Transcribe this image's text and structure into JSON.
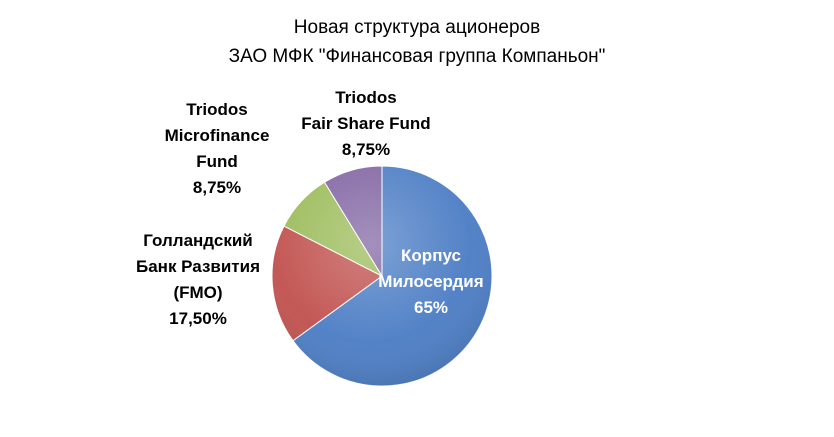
{
  "chart_data": {
    "type": "pie",
    "title": [
      "Новая структура ационеров",
      "ЗАО МФК \"Финансовая группа Компаньон\""
    ],
    "slices": [
      {
        "name": [
          "Корпус",
          "Милосердия"
        ],
        "value": 65,
        "label": "65%",
        "color": "#4A7CC4"
      },
      {
        "name": [
          "Голландский",
          "Банк Развития",
          "(FMO)"
        ],
        "value": 17.5,
        "label": "17,50%",
        "color": "#C0504D"
      },
      {
        "name": [
          "Triodos",
          "Microfinance",
          "Fund"
        ],
        "value": 8.75,
        "label": "8,75%",
        "color": "#9BBB59"
      },
      {
        "name": [
          "Triodos",
          "Fair Share Fund"
        ],
        "value": 8.75,
        "label": "8,75%",
        "color": "#8064A2"
      }
    ],
    "legend": "none"
  }
}
